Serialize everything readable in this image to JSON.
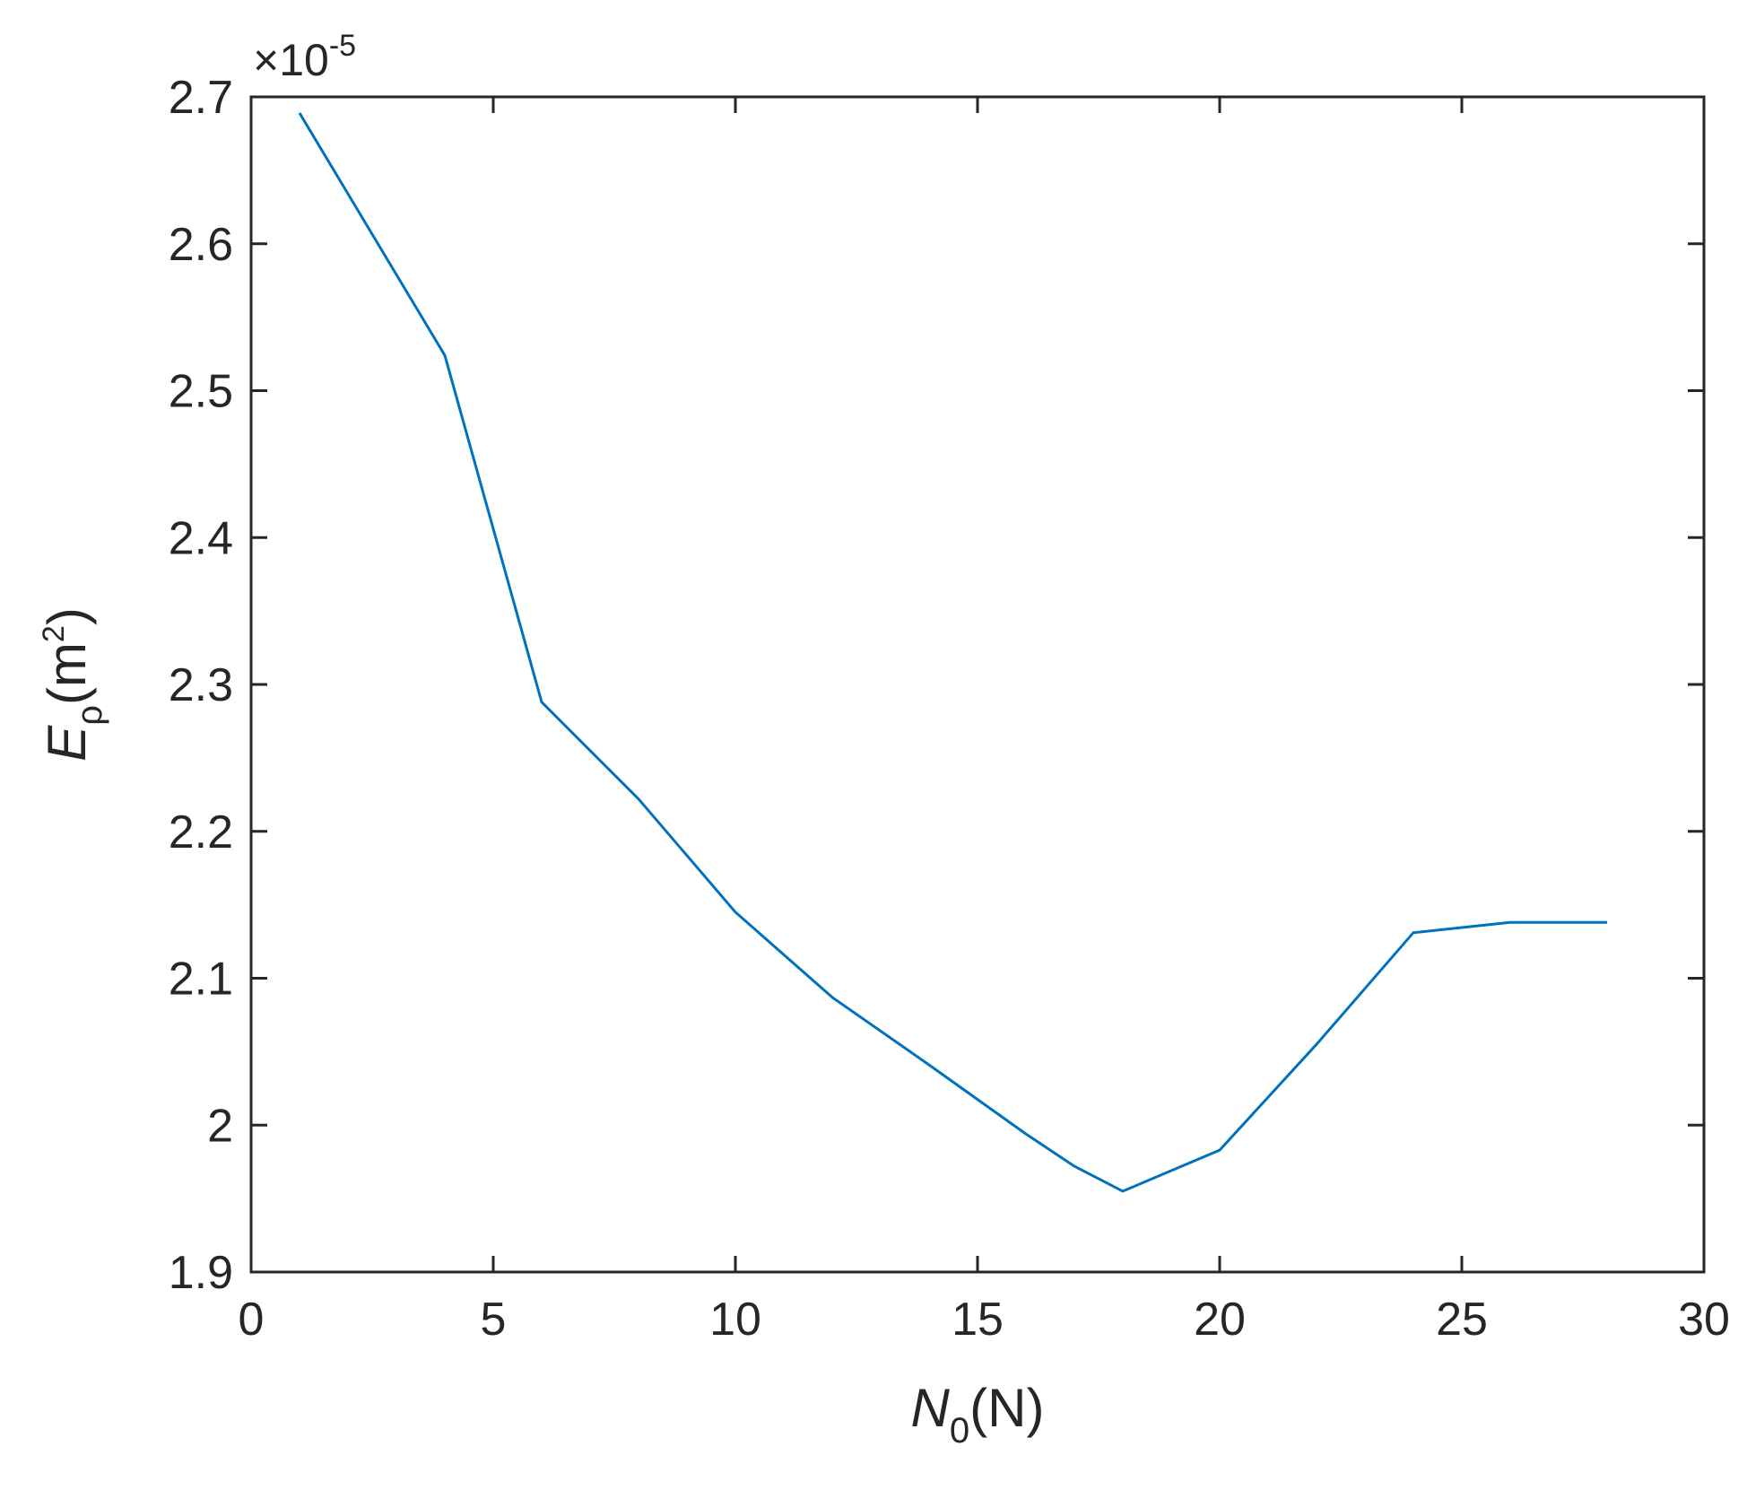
{
  "chart_data": {
    "type": "line",
    "title": "",
    "xlabel": {
      "main": "N",
      "sub": "0",
      "unit": "(N)"
    },
    "ylabel": {
      "main": "E",
      "sub": "ρ",
      "unit_pre": "(m",
      "unit_sup": "2",
      "unit_post": ")"
    },
    "y_exponent": {
      "prefix": "×10",
      "power": "-5"
    },
    "xlim": [
      0,
      30
    ],
    "ylim": [
      1.9,
      2.7
    ],
    "xticks": [
      0,
      5,
      10,
      15,
      20,
      25,
      30
    ],
    "xtick_labels": [
      "0",
      "5",
      "10",
      "15",
      "20",
      "25",
      "30"
    ],
    "yticks": [
      1.9,
      2.0,
      2.1,
      2.2,
      2.3,
      2.4,
      2.5,
      2.6,
      2.7
    ],
    "ytick_labels": [
      "1.9",
      "2",
      "2.1",
      "2.2",
      "2.3",
      "2.4",
      "2.5",
      "2.6",
      "2.7"
    ],
    "grid": false,
    "line_color": "#0072BD",
    "series": [
      {
        "x": [
          1,
          4,
          6,
          8,
          10,
          12,
          14,
          16,
          17,
          18,
          20,
          22,
          24,
          26,
          28
        ],
        "y": [
          2.689,
          2.524,
          2.288,
          2.222,
          2.145,
          2.087,
          2.041,
          1.994,
          1.972,
          1.955,
          1.983,
          2.055,
          2.131,
          2.138,
          2.138
        ]
      }
    ]
  }
}
